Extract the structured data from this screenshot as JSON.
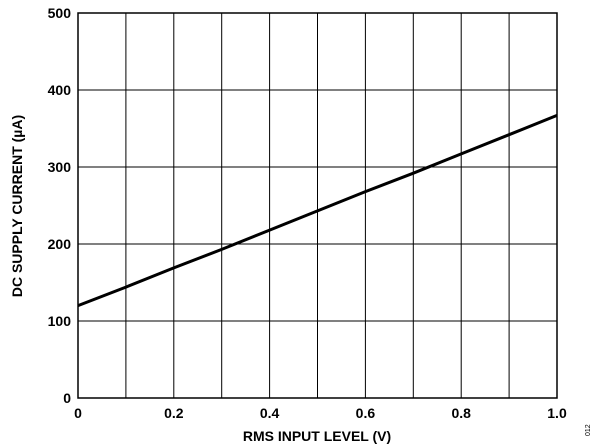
{
  "chart_data": {
    "type": "line",
    "xlabel": "RMS INPUT LEVEL (V)",
    "ylabel": "DC SUPPLY CURRENT (µA)",
    "xlim": [
      0,
      1.0
    ],
    "ylim": [
      0,
      500
    ],
    "x_ticks": [
      0,
      0.1,
      0.2,
      0.3,
      0.4,
      0.5,
      0.6,
      0.7,
      0.8,
      0.9,
      1.0
    ],
    "x_tick_labels": [
      "0",
      "",
      "0.2",
      "",
      "0.4",
      "",
      "0.6",
      "",
      "0.8",
      "",
      "1.0"
    ],
    "y_ticks": [
      0,
      100,
      200,
      300,
      400,
      500
    ],
    "y_tick_labels": [
      "0",
      "100",
      "200",
      "300",
      "400",
      "500"
    ],
    "grid": true,
    "series": [
      {
        "x": [
          0,
          0.1,
          0.2,
          0.3,
          0.4,
          0.5,
          0.6,
          0.7,
          0.8,
          0.9,
          1.0
        ],
        "y": [
          120,
          144,
          169,
          193,
          218,
          243,
          268,
          292,
          317,
          342,
          367
        ]
      }
    ]
  },
  "figure_id": "012",
  "colors": {
    "line": "#000000",
    "grid": "#000000",
    "background": "#ffffff"
  }
}
